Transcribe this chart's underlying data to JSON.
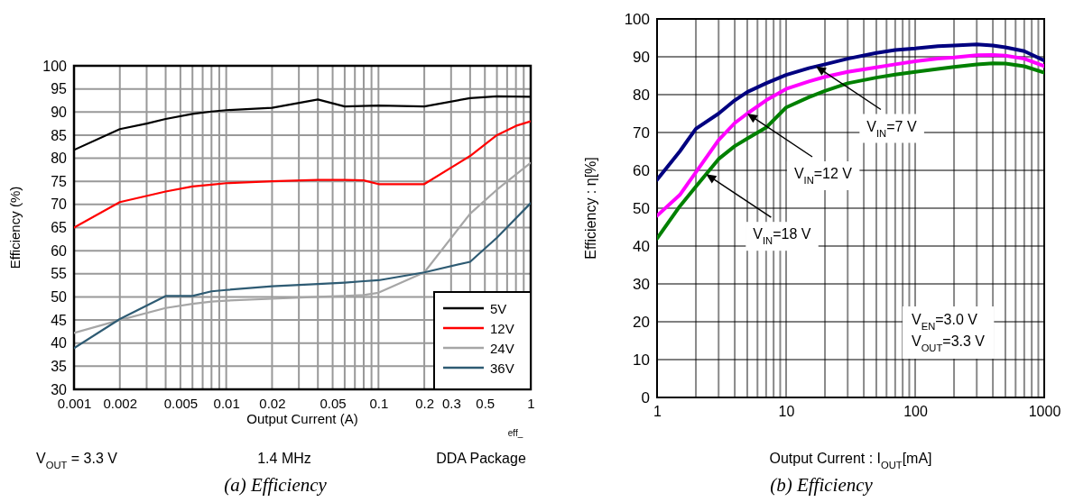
{
  "chart_data": [
    {
      "type": "line",
      "title": "(a) Efficiency",
      "xlabel": "Output Current (A)",
      "ylabel": "Efficiency (%)",
      "log": "x",
      "xlim": [
        0.001,
        1
      ],
      "ylim": [
        30,
        100
      ],
      "xticks": [
        0.001,
        0.002,
        {
          "value": 0.003,
          "label": null
        },
        {
          "value": 0.004,
          "label": null
        },
        0.005,
        {
          "value": 0.006,
          "label": null
        },
        {
          "value": 0.007,
          "label": null
        },
        {
          "value": 0.008,
          "label": null
        },
        {
          "value": 0.009,
          "label": null
        },
        0.01,
        0.02,
        {
          "value": 0.03,
          "label": null
        },
        {
          "value": 0.04,
          "label": null
        },
        0.05,
        {
          "value": 0.06,
          "label": null
        },
        {
          "value": 0.07,
          "label": null
        },
        {
          "value": 0.08,
          "label": null
        },
        {
          "value": 0.09,
          "label": null
        },
        0.1,
        0.2,
        0.3,
        {
          "value": 0.4,
          "label": null
        },
        0.5,
        {
          "value": 0.6,
          "label": null
        },
        {
          "value": 0.7,
          "label": null
        },
        {
          "value": 0.8,
          "label": null
        },
        {
          "value": 0.9,
          "label": null
        },
        1
      ],
      "yticks": [
        30,
        35,
        40,
        45,
        50,
        55,
        60,
        65,
        70,
        75,
        80,
        85,
        90,
        95,
        100
      ],
      "grid": true,
      "legend": "bottom right",
      "marker": "none",
      "line_style": "solid",
      "series": [
        {
          "name": "5V",
          "color": "#000000",
          "x": [
            0.001,
            0.002,
            0.003,
            0.004,
            0.006,
            0.008,
            0.01,
            0.02,
            0.04,
            0.06,
            0.1,
            0.2,
            0.4,
            0.6,
            1
          ],
          "values": [
            81.8,
            86.3,
            87.5,
            88.5,
            89.6,
            90.1,
            90.4,
            90.9,
            92.7,
            91.2,
            91.4,
            91.2,
            93.0,
            93.4,
            93.3
          ]
        },
        {
          "name": "12V",
          "color": "#ff0000",
          "x": [
            0.001,
            0.002,
            0.004,
            0.006,
            0.008,
            0.01,
            0.02,
            0.04,
            0.06,
            0.08,
            0.1,
            0.2,
            0.4,
            0.6,
            0.8,
            1
          ],
          "values": [
            65,
            70.5,
            72.8,
            73.9,
            74.3,
            74.6,
            75.0,
            75.3,
            75.3,
            75.2,
            74.4,
            74.4,
            80.5,
            85.0,
            87.0,
            88.0
          ]
        },
        {
          "name": "24V",
          "color": "#a6a6a6",
          "x": [
            0.001,
            0.002,
            0.004,
            0.006,
            0.008,
            0.01,
            0.02,
            0.04,
            0.06,
            0.08,
            0.1,
            0.2,
            0.4,
            0.6,
            1
          ],
          "values": [
            42.2,
            45.0,
            47.6,
            48.5,
            49.0,
            49.2,
            49.6,
            50.0,
            50.2,
            50.4,
            50.9,
            55.3,
            68.0,
            73.2,
            79.0
          ]
        },
        {
          "name": "36V",
          "color": "#2e5b73",
          "x": [
            0.001,
            0.002,
            0.004,
            0.006,
            0.008,
            0.01,
            0.02,
            0.04,
            0.06,
            0.08,
            0.1,
            0.2,
            0.4,
            0.6,
            1
          ],
          "values": [
            38.9,
            45.2,
            50.2,
            50.2,
            51.2,
            51.5,
            52.3,
            52.8,
            53.1,
            53.4,
            53.6,
            55.3,
            57.6,
            62.8,
            70.3
          ]
        }
      ],
      "annotations": [
        "eff_",
        "V$_{OUT}$ = 3.3 V",
        "1.4 MHz",
        "DDA Package"
      ]
    },
    {
      "type": "line",
      "title": "(b) Efficiency",
      "xlabel": "Output Current : I$_{OUT}$[mA]",
      "ylabel": "Efficiency : η[%]",
      "log": "x",
      "xlim": [
        1,
        1000
      ],
      "ylim": [
        0,
        100
      ],
      "xticks": [
        1,
        {
          "value": 2,
          "label": null
        },
        {
          "value": 3,
          "label": null
        },
        {
          "value": 4,
          "label": null
        },
        {
          "value": 5,
          "label": null
        },
        {
          "value": 6,
          "label": null
        },
        {
          "value": 7,
          "label": null
        },
        {
          "value": 8,
          "label": null
        },
        {
          "value": 9,
          "label": null
        },
        10,
        {
          "value": 20,
          "label": null
        },
        {
          "value": 30,
          "label": null
        },
        {
          "value": 40,
          "label": null
        },
        {
          "value": 50,
          "label": null
        },
        {
          "value": 60,
          "label": null
        },
        {
          "value": 70,
          "label": null
        },
        {
          "value": 80,
          "label": null
        },
        {
          "value": 90,
          "label": null
        },
        100,
        {
          "value": 200,
          "label": null
        },
        {
          "value": 300,
          "label": null
        },
        {
          "value": 400,
          "label": null
        },
        {
          "value": 500,
          "label": null
        },
        {
          "value": 600,
          "label": null
        },
        {
          "value": 700,
          "label": null
        },
        {
          "value": 800,
          "label": null
        },
        {
          "value": 900,
          "label": null
        },
        1000
      ],
      "yticks": [
        0,
        10,
        20,
        30,
        40,
        50,
        60,
        70,
        80,
        90,
        100
      ],
      "grid": true,
      "marker": "none",
      "line_style": "solid",
      "series": [
        {
          "color": "#000080",
          "x": [
            1,
            1.5,
            2,
            3,
            4,
            5,
            7,
            10,
            15,
            20,
            30,
            50,
            70,
            100,
            150,
            200,
            300,
            400,
            500,
            700,
            1000
          ],
          "values": [
            57.5,
            65,
            71,
            75,
            78.5,
            80.7,
            83,
            85.2,
            87,
            88,
            89.5,
            91,
            91.8,
            92.2,
            92.8,
            93,
            93.3,
            93,
            92.5,
            91.5,
            89
          ]
        },
        {
          "color": "#ff00ff",
          "x": [
            1,
            1.5,
            2,
            3,
            4,
            5,
            7,
            10,
            15,
            20,
            30,
            50,
            70,
            100,
            150,
            200,
            300,
            400,
            500,
            700,
            1000
          ],
          "values": [
            48,
            53.5,
            59.5,
            68,
            72.5,
            75,
            78.5,
            81.5,
            83.5,
            84.7,
            86,
            87.2,
            88,
            88.8,
            89.5,
            89.8,
            90.4,
            90.5,
            90.3,
            89.5,
            87.5
          ]
        },
        {
          "color": "#008000",
          "x": [
            1,
            1.5,
            2,
            3,
            4,
            5,
            7,
            10,
            15,
            20,
            30,
            50,
            70,
            100,
            150,
            200,
            300,
            400,
            500,
            700,
            1000
          ],
          "values": [
            42,
            50.5,
            55.7,
            63,
            66.4,
            68.4,
            71.3,
            76.6,
            79.3,
            81,
            83,
            84.5,
            85.3,
            86,
            86.8,
            87.3,
            88,
            88.3,
            88.2,
            87.5,
            85.8
          ]
        }
      ],
      "annotations": [
        {
          "text": "V$_{IN}$=7 V",
          "x": 17,
          "y": 87.5
        },
        {
          "text": "V$_{IN}$=12 V",
          "x": 5,
          "y": 75
        },
        {
          "text": "V$_{IN}$=18 V",
          "x": 2.4,
          "y": 59
        },
        "V$_{EN}$=3.0 V",
        "V$_{OUT}$=3.3 V"
      ]
    }
  ]
}
